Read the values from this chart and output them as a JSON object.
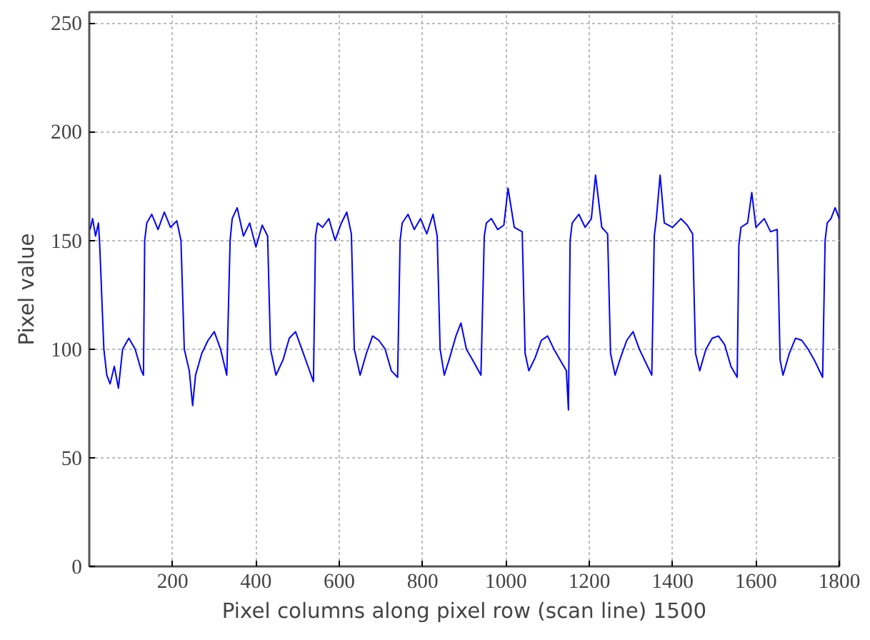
{
  "chart_data": {
    "type": "line",
    "xlabel": "Pixel columns along pixel row (scan line) 1500",
    "ylabel": "Pixel value",
    "xlim": [
      0,
      1800
    ],
    "xticks": [
      200,
      400,
      600,
      800,
      1000,
      1200,
      1400,
      1600,
      1800
    ],
    "ylim": [
      0,
      255
    ],
    "yticks": [
      0,
      50,
      100,
      150,
      200,
      250
    ],
    "grid": true,
    "line_style": "solid",
    "series": [
      {
        "color": "#0000ff",
        "x": [
          2,
          8,
          15,
          22,
          25,
          35,
          42,
          50,
          60,
          70,
          80,
          95,
          110,
          125,
          130,
          133,
          138,
          150,
          165,
          180,
          195,
          210,
          220,
          228,
          240,
          248,
          255,
          270,
          285,
          300,
          315,
          330,
          338,
          343,
          355,
          370,
          385,
          400,
          415,
          428,
          435,
          448,
          465,
          480,
          495,
          510,
          525,
          538,
          543,
          548,
          560,
          575,
          590,
          605,
          618,
          629,
          636,
          650,
          665,
          680,
          695,
          710,
          725,
          740,
          746,
          751,
          765,
          780,
          795,
          810,
          825,
          835,
          842,
          852,
          865,
          880,
          892,
          905,
          920,
          940,
          948,
          953,
          965,
          980,
          995,
          1005,
          1020,
          1039,
          1046,
          1055,
          1070,
          1085,
          1100,
          1115,
          1130,
          1145,
          1150,
          1154,
          1159,
          1175,
          1190,
          1205,
          1215,
          1230,
          1244,
          1251,
          1262,
          1275,
          1290,
          1305,
          1320,
          1335,
          1350,
          1356,
          1361,
          1370,
          1380,
          1400,
          1420,
          1435,
          1448,
          1455,
          1465,
          1480,
          1495,
          1510,
          1525,
          1540,
          1555,
          1559,
          1564,
          1580,
          1590,
          1600,
          1620,
          1635,
          1651,
          1658,
          1665,
          1680,
          1695,
          1710,
          1725,
          1740,
          1760,
          1766,
          1771,
          1780,
          1790,
          1800
        ],
        "values": [
          155,
          160,
          152,
          158,
          148,
          100,
          88,
          84,
          92,
          82,
          100,
          105,
          100,
          90,
          88,
          150,
          158,
          162,
          155,
          163,
          156,
          159,
          150,
          100,
          90,
          74,
          88,
          98,
          104,
          108,
          100,
          88,
          150,
          160,
          165,
          152,
          158,
          147,
          157,
          152,
          100,
          88,
          95,
          105,
          108,
          100,
          92,
          85,
          152,
          158,
          156,
          160,
          150,
          158,
          163,
          153,
          100,
          88,
          98,
          106,
          104,
          100,
          90,
          87,
          150,
          158,
          162,
          155,
          160,
          153,
          162,
          152,
          100,
          88,
          96,
          106,
          112,
          100,
          95,
          88,
          152,
          158,
          160,
          155,
          157,
          174,
          156,
          154,
          98,
          90,
          96,
          104,
          106,
          100,
          95,
          90,
          72,
          150,
          158,
          162,
          156,
          160,
          180,
          156,
          153,
          98,
          88,
          96,
          104,
          108,
          100,
          94,
          88,
          152,
          160,
          180,
          158,
          156,
          160,
          157,
          153,
          98,
          90,
          100,
          105,
          106,
          102,
          92,
          87,
          148,
          156,
          158,
          172,
          156,
          160,
          154,
          155,
          95,
          88,
          98,
          105,
          104,
          100,
          95,
          87,
          150,
          158,
          160,
          165,
          160
        ]
      }
    ]
  }
}
